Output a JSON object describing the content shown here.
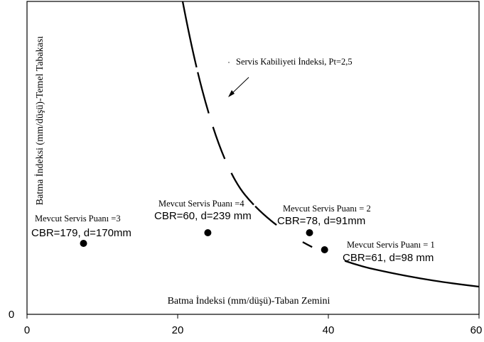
{
  "chart_data": {
    "type": "scatter",
    "title": "",
    "xlabel": "Batma İndeksi (mm/düşü)-Taban Zemini",
    "ylabel": "Batma İndeksi (mm/düşü)-Temel Tabakası",
    "xlim": [
      0,
      60
    ],
    "xticks": [
      "0",
      "20",
      "40",
      "60"
    ],
    "yticks": [
      "0"
    ],
    "grid": false,
    "points": [
      {
        "x": 7.5,
        "label_a": "Mevcut Servis Puanı =3",
        "label_b": "CBR=179, d=170mm"
      },
      {
        "x": 24,
        "label_a": "Mevcut Servis Puanı =4",
        "label_b": "CBR=60, d=239 mm"
      },
      {
        "x": 37.5,
        "label_a": "Mevcut Servis Puanı = 2",
        "label_b": "CBR=78, d=91mm"
      },
      {
        "x": 39.5,
        "label_a": "Mevcut Servis Puanı = 1",
        "label_b": "CBR=61, d=98 mm"
      }
    ],
    "curve": {
      "name": "Servis Kabiliyeti İndeksi, Pt=2,5",
      "style": "dashed"
    }
  }
}
